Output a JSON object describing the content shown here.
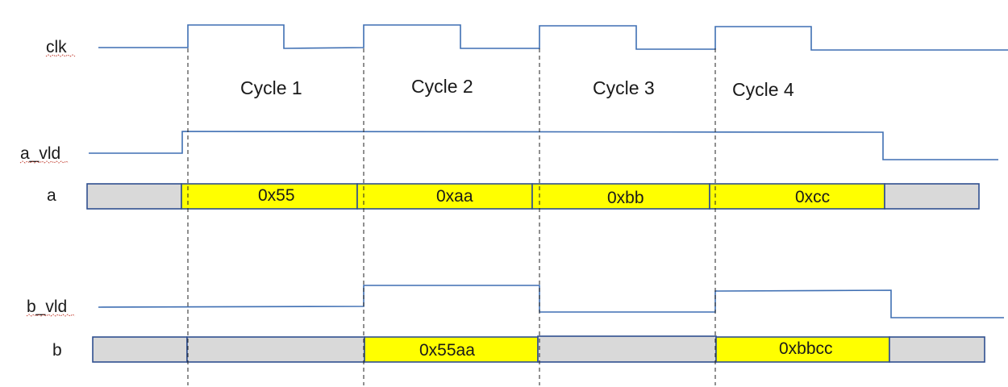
{
  "signals": {
    "clk": "clk",
    "a_vld": "a_vld",
    "a": "a",
    "b_vld": "b_vld",
    "b": "b"
  },
  "cycles": [
    "Cycle 1",
    "Cycle 2",
    "Cycle 3",
    "Cycle 4"
  ],
  "bus_a": [
    {
      "value": "",
      "color": "#d9d9d9"
    },
    {
      "value": "0x55",
      "color": "#ffff00"
    },
    {
      "value": "0xaa",
      "color": "#ffff00"
    },
    {
      "value": "0xbb",
      "color": "#ffff00"
    },
    {
      "value": "0xcc",
      "color": "#ffff00"
    },
    {
      "value": "",
      "color": "#d9d9d9"
    }
  ],
  "bus_b": [
    {
      "value": "",
      "color": "#d9d9d9"
    },
    {
      "value": "",
      "color": "#d9d9d9"
    },
    {
      "value": "0x55aa",
      "color": "#ffff00"
    },
    {
      "value": "",
      "color": "#d9d9d9"
    },
    {
      "value": "0xbbcc",
      "color": "#ffff00"
    },
    {
      "value": "",
      "color": "#d9d9d9"
    }
  ],
  "colors": {
    "wave": "#3f6fb3",
    "bus_border": "#2f4f8f",
    "valid_fill": "#ffff00",
    "idle_fill": "#d9d9d9"
  }
}
